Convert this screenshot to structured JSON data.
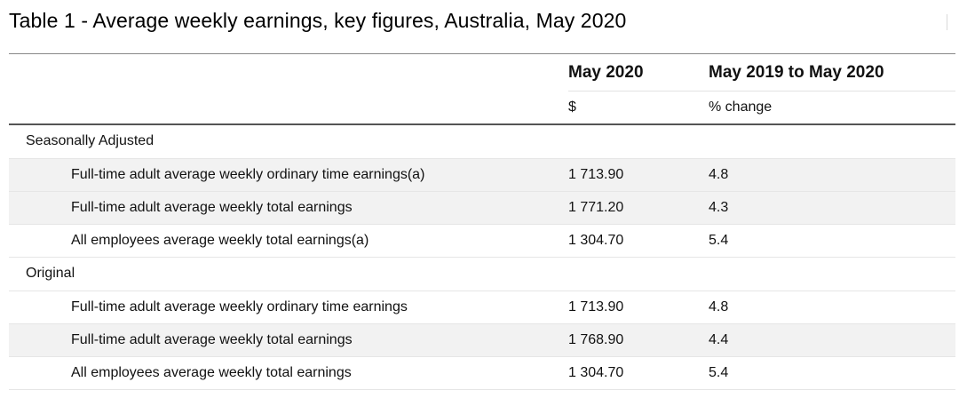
{
  "title": "Table 1 - Average weekly earnings, key figures, Australia, May 2020",
  "columns": {
    "value_header": "May 2020",
    "change_header": "May 2019 to May 2020",
    "value_unit": "$",
    "change_unit": "% change"
  },
  "sections": [
    {
      "label": "Seasonally Adjusted",
      "rows": [
        {
          "label": "Full-time adult average weekly ordinary time earnings(a)",
          "value": "1 713.90",
          "change": "4.8"
        },
        {
          "label": "Full-time adult average weekly total earnings",
          "value": "1 771.20",
          "change": "4.3"
        },
        {
          "label": "All employees average weekly total earnings(a)",
          "value": "1 304.70",
          "change": "5.4"
        }
      ]
    },
    {
      "label": "Original",
      "rows": [
        {
          "label": "Full-time adult average weekly ordinary time earnings",
          "value": "1 713.90",
          "change": "4.8"
        },
        {
          "label": "Full-time adult average weekly total earnings",
          "value": "1 768.90",
          "change": "4.4"
        },
        {
          "label": "All employees average weekly total earnings",
          "value": "1 304.70",
          "change": "5.4"
        }
      ]
    }
  ]
}
